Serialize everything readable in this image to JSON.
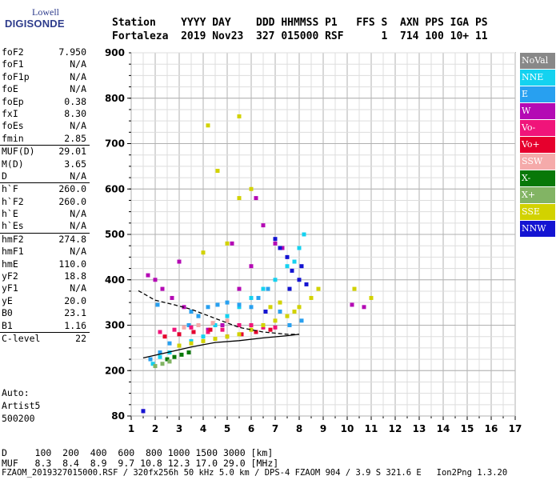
{
  "logo": {
    "top": "Lowell",
    "bottom": "DIGISONDE"
  },
  "header": {
    "line1": "Station    YYYY DAY    DDD HHMMSS P1   FFS S  AXN PPS IGA PS",
    "line2": "Fortaleza  2019 Nov23  327 015000 RSF      1  714 100 10+ 11"
  },
  "params": [
    {
      "label": "foF2",
      "value": "7.950"
    },
    {
      "label": "foF1",
      "value": "N/A"
    },
    {
      "label": "foF1p",
      "value": "N/A"
    },
    {
      "label": "foE",
      "value": "N/A"
    },
    {
      "label": "foEp",
      "value": "0.38"
    },
    {
      "label": "fxI",
      "value": "8.30"
    },
    {
      "label": "foEs",
      "value": "N/A"
    },
    {
      "label": "fmin",
      "value": "2.85"
    },
    {
      "label": "MUF(D)",
      "value": "29.01",
      "sep": true
    },
    {
      "label": "M(D)",
      "value": "3.65"
    },
    {
      "label": "D",
      "value": "N/A"
    },
    {
      "label": "h`F",
      "value": "260.0",
      "sep": true
    },
    {
      "label": "h`F2",
      "value": "260.0"
    },
    {
      "label": "h`E",
      "value": "N/A"
    },
    {
      "label": "h`Es",
      "value": "N/A"
    },
    {
      "label": "hmF2",
      "value": "274.8",
      "sep": true
    },
    {
      "label": "hmF1",
      "value": "N/A"
    },
    {
      "label": "hmE",
      "value": "110.0"
    },
    {
      "label": "yF2",
      "value": "18.8"
    },
    {
      "label": "yF1",
      "value": "N/A"
    },
    {
      "label": "yE",
      "value": "20.0"
    },
    {
      "label": "B0",
      "value": "23.1"
    },
    {
      "label": "B1",
      "value": "1.16"
    },
    {
      "label": "C-level",
      "value": "22",
      "sep": true
    }
  ],
  "auto": {
    "line1": "Auto:",
    "line2": "Artist5",
    "line3": "500200"
  },
  "legend": [
    {
      "label": "NoVal",
      "color": "#888888"
    },
    {
      "label": "NNE",
      "color": "#14d2f0"
    },
    {
      "label": "E",
      "color": "#28a0f0"
    },
    {
      "label": "W",
      "color": "#b40ab4"
    },
    {
      "label": "Vo-",
      "color": "#f0147a"
    },
    {
      "label": "Vo+",
      "color": "#e6002d"
    },
    {
      "label": "SSW",
      "color": "#f5aaaa"
    },
    {
      "label": "X-",
      "color": "#087808"
    },
    {
      "label": "X+",
      "color": "#82b464"
    },
    {
      "label": "SSE",
      "color": "#d2d200"
    },
    {
      "label": "NNW",
      "color": "#1414d2"
    }
  ],
  "footer": {
    "d_line": "D     100  200  400  600  800 1000 1500 3000 [km]",
    "muf_line": "MUF   8.3  8.4  8.9  9.7 10.8 12.3 17.0 29.0 [MHz]",
    "file_line": "FZAOM_2019327015000.RSF / 320fx256h 50 kHz 5.0 km / DPS-4 FZAOM 904 / 3.9 S 321.6 E   Ion2Png 1.3.20"
  },
  "chart_data": {
    "type": "scatter",
    "xlabel": "",
    "ylabel": "",
    "xlim": [
      1,
      17
    ],
    "ylim": [
      80,
      900
    ],
    "x_ticks": [
      1,
      2,
      3,
      4,
      5,
      6,
      7,
      8,
      9,
      10,
      11,
      12,
      13,
      14,
      15,
      16,
      17
    ],
    "y_ticks": [
      80,
      200,
      300,
      400,
      500,
      600,
      700,
      800,
      900
    ],
    "grid": true,
    "legend_position": "right",
    "series": [
      {
        "name": "NNE",
        "color": "#14d2f0",
        "points": [
          [
            1.9,
            215
          ],
          [
            2.2,
            230
          ],
          [
            2.6,
            240
          ],
          [
            3.0,
            255
          ],
          [
            3.5,
            265
          ],
          [
            4.0,
            275
          ],
          [
            4.5,
            300
          ],
          [
            5.0,
            320
          ],
          [
            5.5,
            340
          ],
          [
            6.0,
            360
          ],
          [
            6.5,
            380
          ],
          [
            7.0,
            400
          ],
          [
            7.5,
            430
          ],
          [
            8.0,
            470
          ],
          [
            8.2,
            500
          ],
          [
            7.8,
            440
          ]
        ]
      },
      {
        "name": "E",
        "color": "#28a0f0",
        "points": [
          [
            1.8,
            225
          ],
          [
            2.2,
            240
          ],
          [
            2.6,
            260
          ],
          [
            3.0,
            280
          ],
          [
            3.4,
            300
          ],
          [
            3.8,
            320
          ],
          [
            4.2,
            340
          ],
          [
            4.6,
            345
          ],
          [
            5.0,
            350
          ],
          [
            5.5,
            345
          ],
          [
            6.0,
            340
          ],
          [
            6.3,
            360
          ],
          [
            6.7,
            380
          ],
          [
            7.2,
            330
          ],
          [
            7.6,
            300
          ],
          [
            8.1,
            310
          ],
          [
            2.1,
            345
          ],
          [
            3.5,
            330
          ]
        ]
      },
      {
        "name": "W",
        "color": "#b40ab4",
        "points": [
          [
            1.7,
            410
          ],
          [
            2.0,
            400
          ],
          [
            2.3,
            380
          ],
          [
            2.7,
            360
          ],
          [
            3.2,
            340
          ],
          [
            3.8,
            300
          ],
          [
            4.2,
            290
          ],
          [
            4.8,
            300
          ],
          [
            5.5,
            380
          ],
          [
            6.0,
            430
          ],
          [
            6.5,
            520
          ],
          [
            7.0,
            480
          ],
          [
            7.3,
            470
          ],
          [
            10.2,
            345
          ],
          [
            10.7,
            340
          ],
          [
            1.5,
            93
          ],
          [
            3.0,
            440
          ],
          [
            5.2,
            480
          ],
          [
            6.2,
            580
          ]
        ]
      },
      {
        "name": "Vo-",
        "color": "#f0147a",
        "points": [
          [
            2.2,
            285
          ],
          [
            2.8,
            290
          ],
          [
            3.5,
            295
          ],
          [
            4.2,
            285
          ],
          [
            4.8,
            290
          ],
          [
            5.5,
            300
          ],
          [
            6.0,
            300
          ],
          [
            6.5,
            295
          ],
          [
            7.0,
            295
          ]
        ]
      },
      {
        "name": "Vo+",
        "color": "#e6002d",
        "points": [
          [
            2.4,
            275
          ],
          [
            3.0,
            280
          ],
          [
            3.6,
            285
          ],
          [
            4.3,
            290
          ],
          [
            5.0,
            275
          ],
          [
            5.6,
            280
          ],
          [
            6.2,
            285
          ],
          [
            6.8,
            290
          ]
        ]
      },
      {
        "name": "SSW",
        "color": "#f5aaaa",
        "points": [
          [
            3.2,
            295
          ],
          [
            3.8,
            300
          ],
          [
            4.4,
            305
          ],
          [
            5.0,
            310
          ]
        ]
      },
      {
        "name": "X-",
        "color": "#087808",
        "points": [
          [
            2.5,
            225
          ],
          [
            2.8,
            230
          ],
          [
            3.1,
            235
          ],
          [
            3.4,
            240
          ]
        ]
      },
      {
        "name": "X+",
        "color": "#82b464",
        "points": [
          [
            2.0,
            210
          ],
          [
            2.3,
            215
          ],
          [
            2.6,
            220
          ]
        ]
      },
      {
        "name": "SSE",
        "color": "#d2d200",
        "points": [
          [
            3.0,
            255
          ],
          [
            3.5,
            260
          ],
          [
            4.0,
            265
          ],
          [
            4.5,
            270
          ],
          [
            5.0,
            275
          ],
          [
            5.5,
            280
          ],
          [
            6.0,
            290
          ],
          [
            6.5,
            300
          ],
          [
            7.0,
            310
          ],
          [
            7.5,
            320
          ],
          [
            8.0,
            340
          ],
          [
            8.5,
            360
          ],
          [
            8.8,
            380
          ],
          [
            4.0,
            460
          ],
          [
            5.0,
            480
          ],
          [
            5.5,
            580
          ],
          [
            6.0,
            600
          ],
          [
            4.2,
            740
          ],
          [
            5.5,
            760
          ],
          [
            10.3,
            380
          ],
          [
            11.0,
            360
          ],
          [
            7.2,
            350
          ],
          [
            7.8,
            330
          ],
          [
            6.8,
            340
          ],
          [
            4.6,
            640
          ]
        ]
      },
      {
        "name": "NNW",
        "color": "#1414d2",
        "points": [
          [
            7.0,
            490
          ],
          [
            7.2,
            470
          ],
          [
            7.5,
            450
          ],
          [
            7.7,
            420
          ],
          [
            8.0,
            400
          ],
          [
            8.3,
            390
          ],
          [
            8.1,
            430
          ],
          [
            7.6,
            380
          ],
          [
            6.6,
            330
          ],
          [
            1.5,
            93
          ]
        ]
      }
    ],
    "profile_line": [
      [
        1.5,
        228
      ],
      [
        2.5,
        240
      ],
      [
        3.5,
        252
      ],
      [
        4.5,
        262
      ],
      [
        5.5,
        266
      ],
      [
        6.5,
        272
      ],
      [
        7.5,
        277
      ],
      [
        8.0,
        280
      ]
    ],
    "trace_line": [
      [
        1.3,
        376
      ],
      [
        2.0,
        355
      ],
      [
        2.8,
        345
      ],
      [
        3.5,
        335
      ],
      [
        4.5,
        315
      ],
      [
        5.5,
        295
      ],
      [
        6.5,
        285
      ],
      [
        7.5,
        280
      ],
      [
        8.0,
        280
      ]
    ]
  }
}
